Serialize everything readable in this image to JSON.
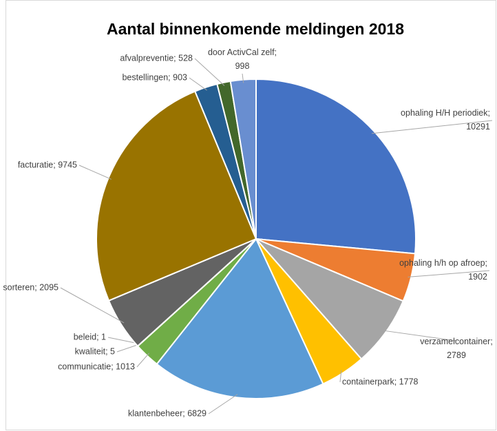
{
  "chart_data": {
    "type": "pie",
    "title": "Aantal binnenkomende meldingen 2018",
    "values": [
      10291,
      1902,
      2789,
      1778,
      6829,
      1013,
      5,
      1,
      2095,
      9745,
      903,
      528,
      998
    ],
    "value_labels": [
      "ophaling H/H periodiek; 10291",
      "ophaling h/h op afroep; 1902",
      "verzamelcontainer; 2789",
      "containerpark; 1778",
      "klantenbeheer; 6829",
      "communicatie; 1013",
      "kwaliteit; 5",
      "beleid; 1",
      "sorteren; 2095",
      "facturatie; 9745",
      "bestellingen; 903",
      "afvalpreventie; 528",
      "door ActivCal zelf; 998"
    ],
    "colors": [
      "#4472c4",
      "#ed7d31",
      "#a5a5a5",
      "#ffc000",
      "#5b9bd5",
      "#70ad47",
      "#264478",
      "#9e480e",
      "#636363",
      "#997300",
      "#255e91",
      "#43682b",
      "#698ed0"
    ]
  }
}
